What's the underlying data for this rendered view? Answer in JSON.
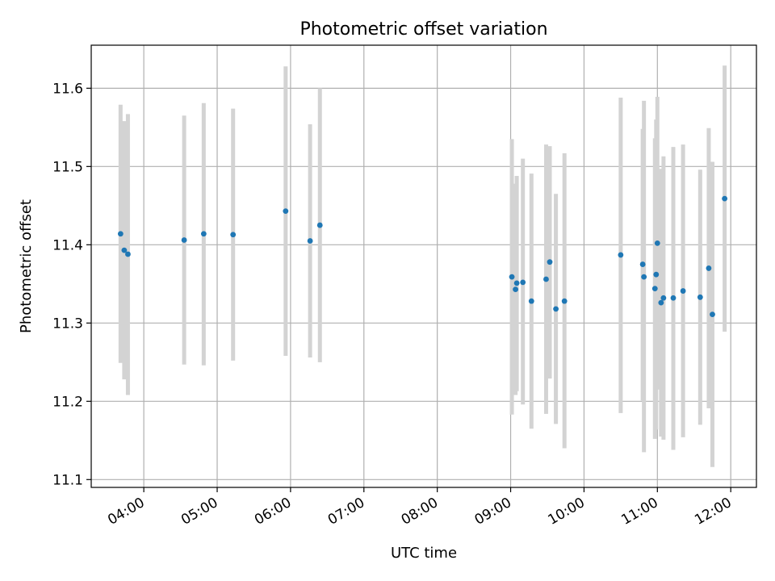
{
  "chart_data": {
    "type": "scatter",
    "title": "Photometric offset variation",
    "xlabel": "UTC time",
    "ylabel": "Photometric offset",
    "x_axis_type": "time",
    "xlim": [
      "03:17",
      "12:21"
    ],
    "ylim": [
      11.09,
      11.655
    ],
    "x_ticks": [
      "04:00",
      "05:00",
      "06:00",
      "07:00",
      "08:00",
      "09:00",
      "10:00",
      "11:00",
      "12:00"
    ],
    "y_ticks": [
      11.1,
      11.2,
      11.3,
      11.4,
      11.5,
      11.6
    ],
    "y_tick_labels": [
      "11.1",
      "11.2",
      "11.3",
      "11.4",
      "11.5",
      "11.6"
    ],
    "grid": true,
    "point_color": "#1f77b4",
    "errorbar_color": "#d3d3d3",
    "series": [
      {
        "points": [
          {
            "x": "03:41",
            "y": 11.414,
            "ylow": 11.249,
            "yhigh": 11.579
          },
          {
            "x": "03:44",
            "y": 11.393,
            "ylow": 11.228,
            "yhigh": 11.558
          },
          {
            "x": "03:47",
            "y": 11.388,
            "ylow": 11.208,
            "yhigh": 11.567
          },
          {
            "x": "04:33",
            "y": 11.406,
            "ylow": 11.247,
            "yhigh": 11.565
          },
          {
            "x": "04:49",
            "y": 11.414,
            "ylow": 11.246,
            "yhigh": 11.581
          },
          {
            "x": "05:13",
            "y": 11.413,
            "ylow": 11.252,
            "yhigh": 11.574
          },
          {
            "x": "05:56",
            "y": 11.443,
            "ylow": 11.258,
            "yhigh": 11.628
          },
          {
            "x": "06:16",
            "y": 11.405,
            "ylow": 11.256,
            "yhigh": 11.554
          },
          {
            "x": "06:24",
            "y": 11.425,
            "ylow": 11.25,
            "yhigh": 11.6
          },
          {
            "x": "09:01",
            "y": 11.359,
            "ylow": 11.183,
            "yhigh": 11.535
          },
          {
            "x": "09:04",
            "y": 11.343,
            "ylow": 11.208,
            "yhigh": 11.478
          },
          {
            "x": "09:05",
            "y": 11.351,
            "ylow": 11.213,
            "yhigh": 11.488
          },
          {
            "x": "09:10",
            "y": 11.352,
            "ylow": 11.196,
            "yhigh": 11.51
          },
          {
            "x": "09:17",
            "y": 11.328,
            "ylow": 11.165,
            "yhigh": 11.491
          },
          {
            "x": "09:29",
            "y": 11.356,
            "ylow": 11.184,
            "yhigh": 11.528
          },
          {
            "x": "09:32",
            "y": 11.378,
            "ylow": 11.229,
            "yhigh": 11.526
          },
          {
            "x": "09:37",
            "y": 11.318,
            "ylow": 11.171,
            "yhigh": 11.465
          },
          {
            "x": "09:44",
            "y": 11.328,
            "ylow": 11.14,
            "yhigh": 11.517
          },
          {
            "x": "10:30",
            "y": 11.387,
            "ylow": 11.185,
            "yhigh": 11.588
          },
          {
            "x": "10:48",
            "y": 11.375,
            "ylow": 11.201,
            "yhigh": 11.548
          },
          {
            "x": "10:49",
            "y": 11.359,
            "ylow": 11.135,
            "yhigh": 11.584
          },
          {
            "x": "10:58",
            "y": 11.344,
            "ylow": 11.152,
            "yhigh": 11.536
          },
          {
            "x": "10:59",
            "y": 11.362,
            "ylow": 11.164,
            "yhigh": 11.56
          },
          {
            "x": "11:00",
            "y": 11.402,
            "ylow": 11.215,
            "yhigh": 11.589
          },
          {
            "x": "11:03",
            "y": 11.326,
            "ylow": 11.155,
            "yhigh": 11.497
          },
          {
            "x": "11:05",
            "y": 11.332,
            "ylow": 11.151,
            "yhigh": 11.513
          },
          {
            "x": "11:13",
            "y": 11.332,
            "ylow": 11.138,
            "yhigh": 11.525
          },
          {
            "x": "11:21",
            "y": 11.341,
            "ylow": 11.154,
            "yhigh": 11.528
          },
          {
            "x": "11:35",
            "y": 11.333,
            "ylow": 11.17,
            "yhigh": 11.496
          },
          {
            "x": "11:42",
            "y": 11.37,
            "ylow": 11.191,
            "yhigh": 11.549
          },
          {
            "x": "11:45",
            "y": 11.311,
            "ylow": 11.116,
            "yhigh": 11.506
          },
          {
            "x": "11:55",
            "y": 11.459,
            "ylow": 11.289,
            "yhigh": 11.629
          }
        ]
      }
    ]
  }
}
